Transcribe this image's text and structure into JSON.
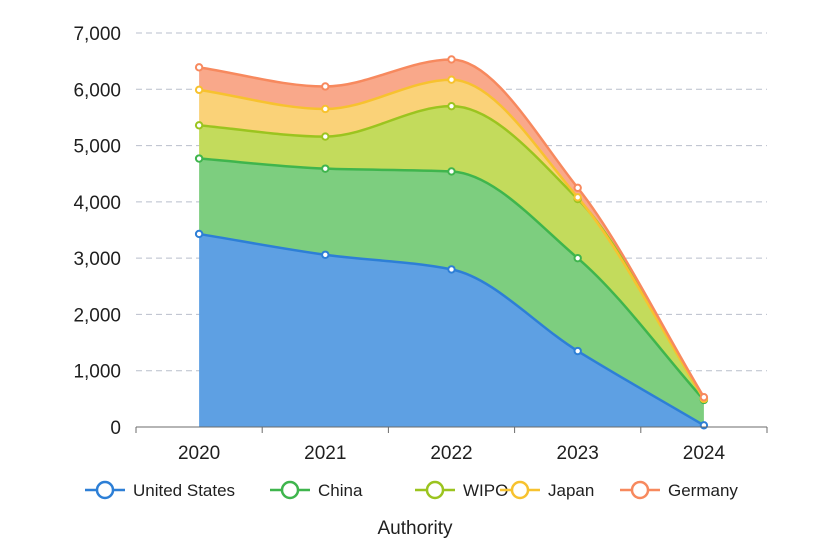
{
  "chart_data": {
    "type": "area",
    "stacked": true,
    "smooth": true,
    "categories": [
      "2020",
      "2021",
      "2022",
      "2023",
      "2024"
    ],
    "series": [
      {
        "name": "United States",
        "values": [
          3430,
          3060,
          2800,
          1350,
          30
        ],
        "color": "#2d7fd6",
        "fill": "#5ea0e3"
      },
      {
        "name": "China",
        "values": [
          1340,
          1530,
          1740,
          1650,
          450
        ],
        "color": "#3fb54d",
        "fill": "#7dce7f"
      },
      {
        "name": "WIPO",
        "values": [
          590,
          570,
          1160,
          1050,
          20
        ],
        "color": "#9bc41f",
        "fill": "#c3db5c"
      },
      {
        "name": "Japan",
        "values": [
          630,
          490,
          470,
          30,
          0
        ],
        "color": "#f7c22f",
        "fill": "#fad278"
      },
      {
        "name": "Germany",
        "values": [
          400,
          400,
          360,
          170,
          30
        ],
        "color": "#f7895e",
        "fill": "#f9a88a"
      }
    ],
    "ylim": [
      0,
      7000
    ],
    "yticks": [
      "0",
      "1,000",
      "2,000",
      "3,000",
      "4,000",
      "5,000",
      "6,000",
      "7,000"
    ],
    "xlabel": "Authority",
    "ylabel": "",
    "title": "",
    "legend": "bottom",
    "grid": "horizontal-dashed"
  }
}
